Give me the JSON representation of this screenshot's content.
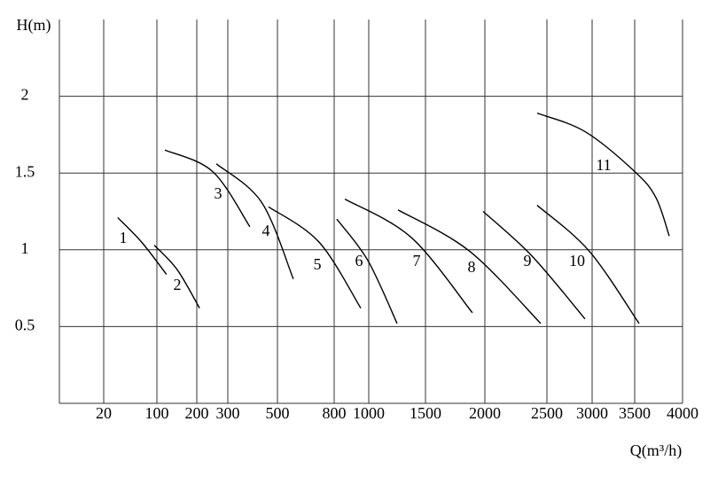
{
  "chart_data": {
    "type": "line",
    "y_label": "H(m)",
    "x_label": "Q(m³/h)",
    "xticks": [
      20,
      100,
      200,
      300,
      500,
      800,
      1000,
      1500,
      2000,
      2500,
      3000,
      3500,
      4000
    ],
    "ylim": [
      0,
      2.5
    ],
    "yticks": [
      0.5,
      1,
      1.5,
      2
    ],
    "grid": true,
    "series": [
      {
        "name": "1",
        "color": "#000000",
        "x": [
          41,
          77,
          124
        ],
        "values": [
          1.21,
          1.05,
          0.84
        ]
      },
      {
        "name": "2",
        "color": "#000000",
        "x": [
          96,
          151,
          209
        ],
        "values": [
          1.03,
          0.87,
          0.62
        ]
      },
      {
        "name": "3",
        "color": "#000000",
        "x": [
          120,
          251,
          389
        ],
        "values": [
          1.65,
          1.51,
          1.15
        ]
      },
      {
        "name": "4",
        "color": "#000000",
        "x": [
          263,
          436,
          584
        ],
        "values": [
          1.56,
          1.31,
          0.81
        ]
      },
      {
        "name": "5",
        "color": "#000000",
        "x": [
          464,
          720,
          954
        ],
        "values": [
          1.28,
          1.05,
          0.62
        ]
      },
      {
        "name": "6",
        "color": "#000000",
        "x": [
          815,
          995,
          1250
        ],
        "values": [
          1.2,
          0.93,
          0.52
        ]
      },
      {
        "name": "7",
        "color": "#000000",
        "x": [
          862,
          1375,
          1895
        ],
        "values": [
          1.33,
          1.08,
          0.59
        ]
      },
      {
        "name": "8",
        "color": "#000000",
        "x": [
          1258,
          1873,
          2450
        ],
        "values": [
          1.26,
          0.99,
          0.52
        ]
      },
      {
        "name": "9",
        "color": "#000000",
        "x": [
          1985,
          2379,
          2921
        ],
        "values": [
          1.25,
          0.96,
          0.55
        ]
      },
      {
        "name": "10",
        "color": "#000000",
        "x": [
          2421,
          2970,
          3546
        ],
        "values": [
          1.29,
          0.99,
          0.52
        ]
      },
      {
        "name": "11",
        "color": "#000000",
        "x": [
          2421,
          2921,
          3500,
          3722,
          3861
        ],
        "values": [
          1.89,
          1.77,
          1.51,
          1.34,
          1.09
        ]
      }
    ]
  }
}
